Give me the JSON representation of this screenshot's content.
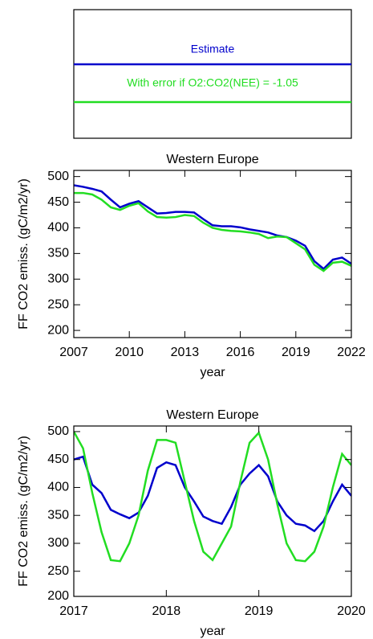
{
  "chart_data": [
    {
      "type": "line",
      "title": "Western Europe",
      "xlabel": "year",
      "ylabel": "FF CO2 emiss. (gC/m2/yr)",
      "x": [
        2007,
        2007.5,
        2008,
        2008.5,
        2009,
        2009.5,
        2010,
        2010.5,
        2011,
        2011.5,
        2012,
        2012.5,
        2013,
        2013.5,
        2014,
        2014.5,
        2015,
        2015.5,
        2016,
        2016.5,
        2017,
        2017.5,
        2018,
        2018.5,
        2019,
        2019.5,
        2020,
        2020.5,
        2021,
        2021.5,
        2022
      ],
      "series": [
        {
          "name": "Estimate",
          "color": "#0000cc",
          "values": [
            483,
            480,
            476,
            471,
            455,
            440,
            447,
            452,
            440,
            428,
            429,
            431,
            431,
            430,
            417,
            405,
            403,
            403,
            401,
            397,
            394,
            391,
            385,
            382,
            375,
            365,
            335,
            320,
            338,
            342,
            330
          ]
        },
        {
          "name": "With error if O2:CO2(NEE) = -1.05",
          "color": "#22dd22",
          "values": [
            468,
            468,
            465,
            455,
            440,
            435,
            443,
            448,
            432,
            421,
            420,
            421,
            425,
            423,
            410,
            400,
            396,
            394,
            393,
            391,
            388,
            380,
            383,
            382,
            370,
            358,
            328,
            316,
            332,
            334,
            326
          ]
        }
      ],
      "xlim": [
        2007,
        2022
      ],
      "xticks": [
        2007,
        2010,
        2013,
        2016,
        2019,
        2022
      ],
      "ylim": [
        186,
        512
      ],
      "yticks": [
        200,
        250,
        300,
        350,
        400,
        450,
        500
      ]
    },
    {
      "type": "line",
      "title": "Western Europe",
      "xlabel": "year",
      "ylabel": "FF CO2 emiss. (gC/m2/yr)",
      "x": [
        2017,
        2017.1,
        2017.2,
        2017.3,
        2017.4,
        2017.5,
        2017.6,
        2017.7,
        2017.8,
        2017.9,
        2018,
        2018.1,
        2018.2,
        2018.3,
        2018.4,
        2018.5,
        2018.6,
        2018.7,
        2018.8,
        2018.9,
        2019,
        2019.1,
        2019.2,
        2019.3,
        2019.4,
        2019.5,
        2019.6,
        2019.7,
        2019.8,
        2019.9,
        2020
      ],
      "series": [
        {
          "name": "Estimate",
          "color": "#0000cc",
          "values": [
            450,
            455,
            405,
            390,
            360,
            352,
            345,
            355,
            385,
            435,
            445,
            440,
            400,
            375,
            348,
            340,
            335,
            365,
            405,
            425,
            440,
            420,
            375,
            350,
            335,
            332,
            322,
            340,
            375,
            405,
            385
          ]
        },
        {
          "name": "With error if O2:CO2(NEE) = -1.05",
          "color": "#22dd22",
          "values": [
            500,
            470,
            390,
            320,
            270,
            268,
            300,
            350,
            430,
            485,
            485,
            480,
            410,
            340,
            285,
            270,
            300,
            330,
            410,
            480,
            498,
            450,
            370,
            300,
            270,
            268,
            285,
            330,
            400,
            460,
            440
          ]
        }
      ],
      "xlim": [
        2017,
        2020
      ],
      "xticks": [
        2017,
        2018,
        2019,
        2020
      ],
      "ylim": [
        205,
        510
      ],
      "yticks": [
        200,
        250,
        300,
        350,
        400,
        450,
        500
      ]
    }
  ]
}
